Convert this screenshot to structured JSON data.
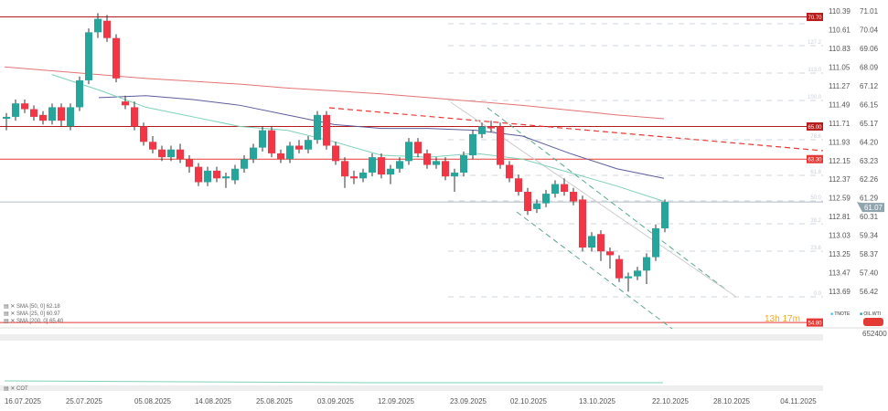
{
  "chart_data": {
    "type": "candlestick",
    "instruments": {
      "main": "OIL.WTI",
      "secondary": "TNOTE"
    },
    "x_ticks": [
      "16.07.2025",
      "25.07.2025",
      "05.08.2025",
      "14.08.2025",
      "25.08.2025",
      "03.09.2025",
      "12.09.2025",
      "23.09.2025",
      "02.10.2025",
      "13.10.2025",
      "22.10.2025",
      "28.10.2025",
      "04.11.2025"
    ],
    "y_ticks_right": [
      "71.01",
      "70.04",
      "69.06",
      "68.09",
      "67.12",
      "66.15",
      "65.17",
      "64.20",
      "63.23",
      "62.26",
      "61.29",
      "60.31",
      "59.34",
      "58.37",
      "57.40",
      "56.42"
    ],
    "y_ticks_left": [
      "110.39",
      "110.61",
      "110.83",
      "111.05",
      "111.27",
      "111.49",
      "111.71",
      "111.93",
      "112.15",
      "112.37",
      "112.59",
      "112.81",
      "113.03",
      "113.25",
      "113.47",
      "113.69"
    ],
    "ylim": [
      56.42,
      71.01
    ],
    "last_price": "61.07",
    "levels": [
      {
        "value": 70.7,
        "label": "70.70"
      },
      {
        "value": 65.0,
        "label": "65.00"
      },
      {
        "value": 63.3,
        "label": "63.30"
      },
      {
        "value": 54.8,
        "label": "54.80"
      }
    ],
    "fib_levels": [
      "127.2",
      "113.0",
      "100.0",
      "78.6",
      "61.8",
      "50.0",
      "38.2",
      "23.6",
      "0.0"
    ],
    "ohlc": [
      [
        65.4,
        65.7,
        64.8,
        65.5
      ],
      [
        65.5,
        66.4,
        65.3,
        66.2
      ],
      [
        66.2,
        66.4,
        65.7,
        65.9
      ],
      [
        65.9,
        66.1,
        65.3,
        65.5
      ],
      [
        65.6,
        65.8,
        65.1,
        65.3
      ],
      [
        65.3,
        66.2,
        65.1,
        66.0
      ],
      [
        66.0,
        66.2,
        65.0,
        65.3
      ],
      [
        65.0,
        66.2,
        64.8,
        66.0
      ],
      [
        66.0,
        67.6,
        65.8,
        67.4
      ],
      [
        67.4,
        70.1,
        67.2,
        69.9
      ],
      [
        69.9,
        70.9,
        69.6,
        70.6
      ],
      [
        70.5,
        70.8,
        69.4,
        69.6
      ],
      [
        69.6,
        69.8,
        67.3,
        67.5
      ],
      [
        66.3,
        66.6,
        65.9,
        66.1
      ],
      [
        66.0,
        66.3,
        64.8,
        65.0
      ],
      [
        65.0,
        65.2,
        64.0,
        64.2
      ],
      [
        64.2,
        64.5,
        63.6,
        63.8
      ],
      [
        63.8,
        64.0,
        63.2,
        63.4
      ],
      [
        63.4,
        64.0,
        63.2,
        63.8
      ],
      [
        63.8,
        64.1,
        63.1,
        63.3
      ],
      [
        63.3,
        63.5,
        62.6,
        62.9
      ],
      [
        62.9,
        63.1,
        61.9,
        62.1
      ],
      [
        62.1,
        62.9,
        61.9,
        62.7
      ],
      [
        62.7,
        62.9,
        62.1,
        62.3
      ],
      [
        62.3,
        62.6,
        61.8,
        62.4
      ],
      [
        62.2,
        63.0,
        62.0,
        62.8
      ],
      [
        62.8,
        63.5,
        62.6,
        63.3
      ],
      [
        63.3,
        64.1,
        63.1,
        63.9
      ],
      [
        63.9,
        65.0,
        63.7,
        64.8
      ],
      [
        64.8,
        65.0,
        63.4,
        63.6
      ],
      [
        63.6,
        63.8,
        63.1,
        63.3
      ],
      [
        63.3,
        64.2,
        63.1,
        64.0
      ],
      [
        64.0,
        64.3,
        63.6,
        63.8
      ],
      [
        63.8,
        64.5,
        63.6,
        64.3
      ],
      [
        64.3,
        65.8,
        64.1,
        65.6
      ],
      [
        65.6,
        65.8,
        63.8,
        64.0
      ],
      [
        64.0,
        64.2,
        63.0,
        63.2
      ],
      [
        63.2,
        63.4,
        61.8,
        62.4
      ],
      [
        62.4,
        62.7,
        62.0,
        62.3
      ],
      [
        62.3,
        62.8,
        62.1,
        62.6
      ],
      [
        62.6,
        63.6,
        62.4,
        63.4
      ],
      [
        63.4,
        63.6,
        62.3,
        62.5
      ],
      [
        62.5,
        63.0,
        62.0,
        62.8
      ],
      [
        62.8,
        63.4,
        62.6,
        63.2
      ],
      [
        63.2,
        64.4,
        63.0,
        64.2
      ],
      [
        64.2,
        64.4,
        63.4,
        63.6
      ],
      [
        63.6,
        63.8,
        62.8,
        63.0
      ],
      [
        63.0,
        63.4,
        62.8,
        63.2
      ],
      [
        63.2,
        63.4,
        62.2,
        62.4
      ],
      [
        62.4,
        62.8,
        61.6,
        62.6
      ],
      [
        62.6,
        63.7,
        62.4,
        63.5
      ],
      [
        63.5,
        64.8,
        63.3,
        64.6
      ],
      [
        64.6,
        65.2,
        64.4,
        65.0
      ],
      [
        65.0,
        65.3,
        64.7,
        64.9
      ],
      [
        65.0,
        65.2,
        62.8,
        63.0
      ],
      [
        63.0,
        63.2,
        62.1,
        62.3
      ],
      [
        62.3,
        62.5,
        61.4,
        61.6
      ],
      [
        61.6,
        61.8,
        60.4,
        60.6
      ],
      [
        60.7,
        61.2,
        60.5,
        61.0
      ],
      [
        61.0,
        61.7,
        60.8,
        61.5
      ],
      [
        61.5,
        62.2,
        61.3,
        62.0
      ],
      [
        62.0,
        62.3,
        61.4,
        61.6
      ],
      [
        61.6,
        61.8,
        60.9,
        61.1
      ],
      [
        61.2,
        61.4,
        58.5,
        58.7
      ],
      [
        58.7,
        59.5,
        58.5,
        59.3
      ],
      [
        59.4,
        59.6,
        58.0,
        58.5
      ],
      [
        58.5,
        58.7,
        57.6,
        58.3
      ],
      [
        58.1,
        58.3,
        56.9,
        57.1
      ],
      [
        57.1,
        57.4,
        56.4,
        57.2
      ],
      [
        57.2,
        57.7,
        57.0,
        57.5
      ],
      [
        57.5,
        58.4,
        56.8,
        58.2
      ],
      [
        58.2,
        59.9,
        58.0,
        59.7
      ],
      [
        59.7,
        61.2,
        59.5,
        61.07
      ]
    ],
    "series": [
      {
        "name": "SMA [200, 0]",
        "last": "65.40",
        "color": "#e57373",
        "values": [
          68.1,
          67.9,
          67.7,
          67.5,
          67.35,
          67.2,
          67.0,
          66.85,
          66.7,
          66.5,
          66.3,
          66.1,
          65.85,
          65.6,
          65.4
        ]
      },
      {
        "name": "SMA [50, 0]",
        "last": "62.18",
        "color": "#5c5c9c",
        "values": [
          null,
          null,
          66.5,
          66.6,
          66.4,
          66.1,
          65.6,
          65.1,
          64.9,
          64.9,
          64.8,
          64.5,
          63.6,
          62.8,
          62.3
        ]
      },
      {
        "name": "SMA [25, 0]",
        "last": "60.97",
        "color": "#7fd1b9",
        "values": [
          null,
          67.7,
          66.9,
          66.0,
          65.5,
          65.0,
          64.8,
          64.2,
          63.5,
          63.4,
          63.6,
          63.3,
          62.6,
          61.9,
          61.1
        ]
      }
    ],
    "cot_label": "COT",
    "cot_value": "652400",
    "countdown": "13h 17m",
    "legend_tnote": "TNOTE",
    "legend_oil": "OIL.WTI"
  }
}
